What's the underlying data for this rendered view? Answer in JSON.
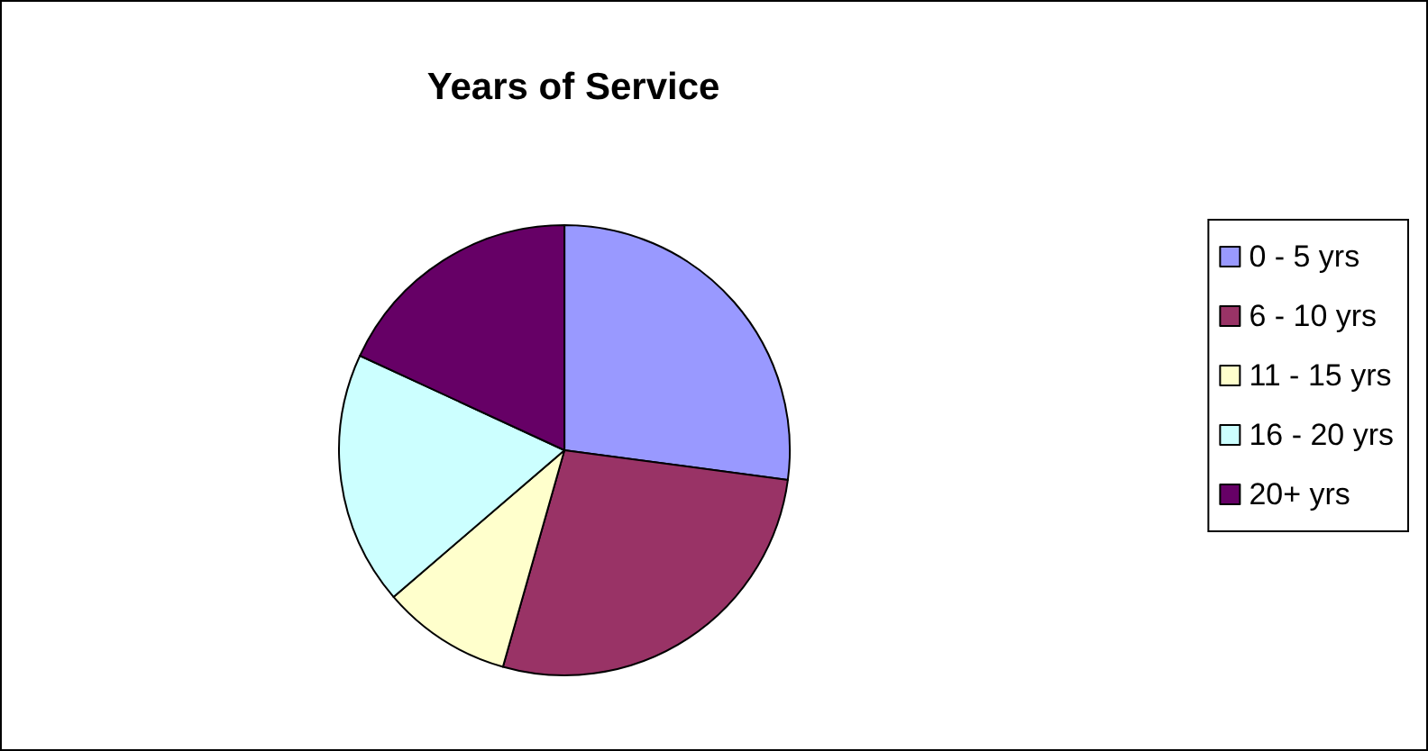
{
  "chart_data": {
    "type": "pie",
    "title": "Years of Service",
    "categories": [
      "0 - 5 yrs",
      "6 - 10 yrs",
      "11 - 15 yrs",
      "16 - 20 yrs",
      "20+ yrs"
    ],
    "values": [
      27.1,
      27.3,
      9.3,
      18.2,
      18.1
    ],
    "colors": [
      "#9999ff",
      "#993366",
      "#ffffcc",
      "#ccffff",
      "#660066"
    ],
    "legend": "right"
  }
}
